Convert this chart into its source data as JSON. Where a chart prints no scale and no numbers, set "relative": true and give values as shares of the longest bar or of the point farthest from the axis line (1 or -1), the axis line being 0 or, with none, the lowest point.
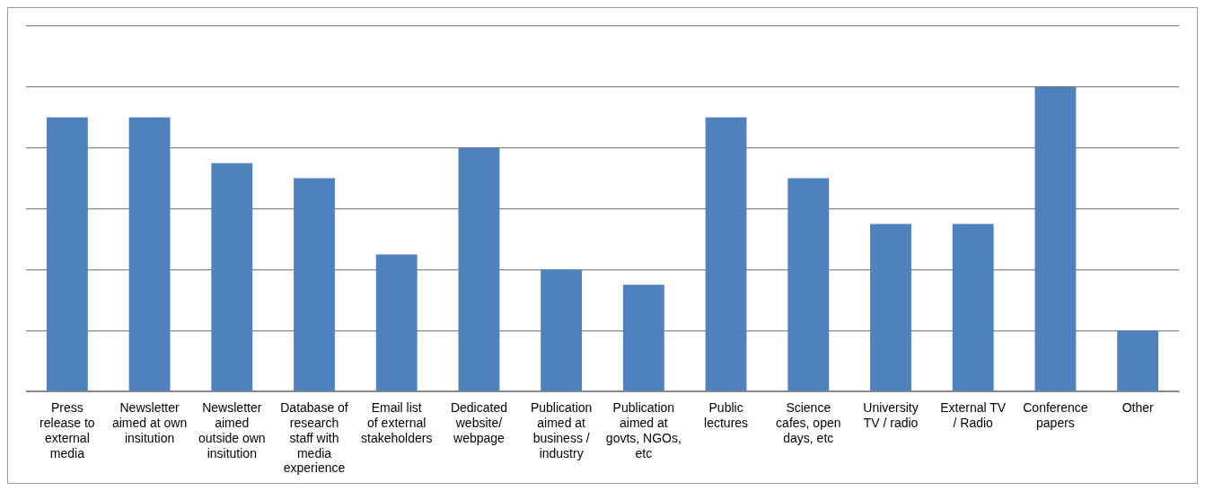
{
  "chart_data": {
    "type": "bar",
    "relative": true,
    "grid": "y",
    "color": "#4f81bd",
    "categories": [
      "Press release to external media",
      "Newsletter aimed at own insitution",
      "Newsletter aimed outside own insitution",
      "Database of research staff with media experience",
      "Email list of external stakeholders",
      "Dedicated website/ webpage",
      "Publication aimed at business / industry",
      "Publication aimed at govts, NGOs, etc",
      "Public lectures",
      "Science cafes, open days, etc",
      "University TV / radio",
      "External TV / Radio",
      "Conference papers",
      "Other"
    ],
    "values": [
      0.9,
      0.9,
      0.75,
      0.7,
      0.45,
      0.8,
      0.4,
      0.35,
      0.9,
      0.7,
      0.55,
      0.55,
      1,
      0.2
    ]
  }
}
